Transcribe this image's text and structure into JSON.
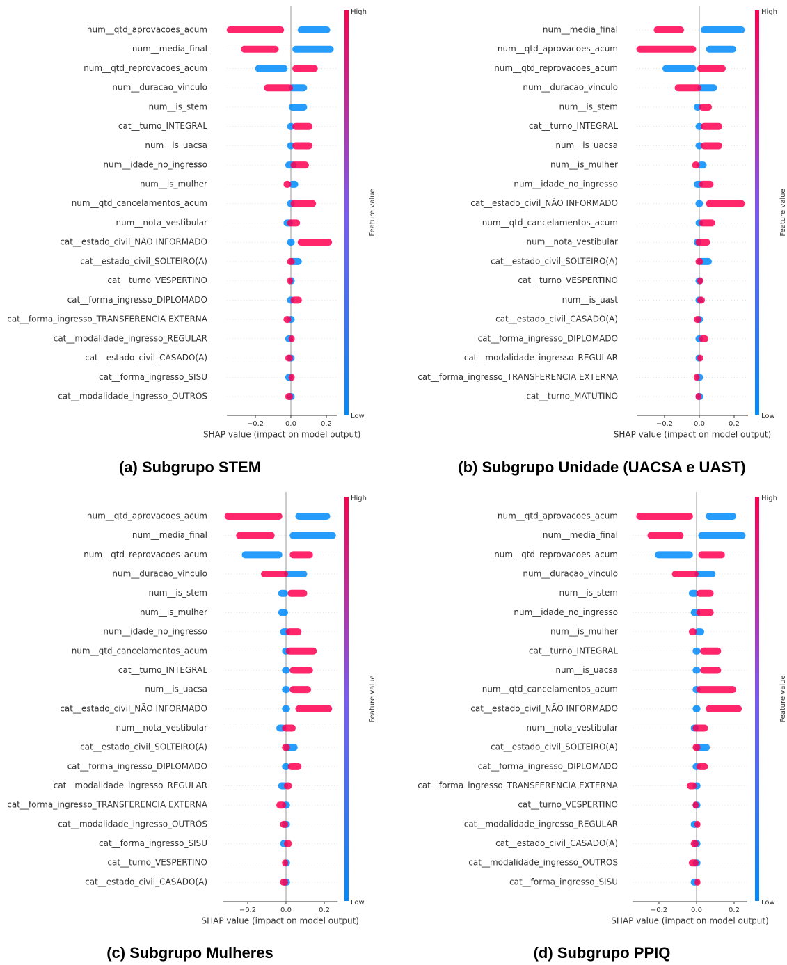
{
  "chart_data": [
    {
      "type": "beeswarm",
      "title": "(a) Subgrupo STEM",
      "xlabel": "SHAP value (impact on model output)",
      "colorbar": {
        "label": "Feature value",
        "high": "High",
        "low": "Low",
        "high_color": "#ff0051",
        "low_color": "#008bfb"
      },
      "xlim": [
        -0.36,
        0.26
      ],
      "xticks": [
        {
          "value": -0.2,
          "label": "−0.2"
        },
        {
          "value": 0,
          "label": "0.0"
        },
        {
          "value": 0.2,
          "label": "0.2"
        }
      ],
      "features": [
        "num__qtd_aprovacoes_acum",
        "num__media_final",
        "num__qtd_reprovacoes_acum",
        "num__duracao_vinculo",
        "num__is_stem",
        "cat__turno_INTEGRAL",
        "num__is_uacsa",
        "num__idade_no_ingresso",
        "num__is_mulher",
        "num__qtd_cancelamentos_acum",
        "num__nota_vestibular",
        "cat__estado_civil_NÃO INFORMADO",
        "cat__estado_civil_SOLTEIRO(A)",
        "cat__turno_VESPERTINO",
        "cat__forma_ingresso_DIPLOMADO",
        "cat__forma_ingresso_TRANSFERENCIA EXTERNA",
        "cat__modalidade_ingresso_REGULAR",
        "cat__estado_civil_CASADO(A)",
        "cat__forma_ingresso_SISU",
        "cat__modalidade_ingresso_OUTROS"
      ],
      "high": [
        [
          -0.35,
          -0.05
        ],
        [
          -0.27,
          -0.08
        ],
        [
          0.02,
          0.14
        ],
        [
          -0.14,
          0.0
        ],
        null,
        [
          0.02,
          0.11
        ],
        [
          0.02,
          0.11
        ],
        [
          0.01,
          0.09
        ],
        [
          -0.03,
          -0.01
        ],
        [
          0.01,
          0.13
        ],
        [
          -0.01,
          0.04
        ],
        [
          0.05,
          0.22
        ],
        [
          -0.01,
          0.01
        ],
        [
          -0.01,
          0.0
        ],
        [
          0.01,
          0.05
        ],
        [
          -0.03,
          -0.01
        ],
        [
          0.0,
          0.01
        ],
        [
          -0.02,
          0.0
        ],
        [
          0.0,
          0.01
        ],
        [
          -0.02,
          0.0
        ]
      ],
      "low": [
        [
          0.05,
          0.21
        ],
        [
          0.02,
          0.23
        ],
        [
          -0.19,
          -0.03
        ],
        [
          0.0,
          0.08
        ],
        [
          0.0,
          0.08
        ],
        [
          -0.01,
          0.01
        ],
        [
          -0.01,
          0.01
        ],
        [
          -0.02,
          0.02
        ],
        [
          0.0,
          0.03
        ],
        [
          -0.01,
          0.01
        ],
        [
          -0.03,
          0.0
        ],
        [
          -0.01,
          0.01
        ],
        [
          0.0,
          0.05
        ],
        [
          0.0,
          0.01
        ],
        [
          -0.01,
          0.01
        ],
        [
          -0.01,
          0.01
        ],
        [
          -0.02,
          0.0
        ],
        [
          -0.01,
          0.01
        ],
        [
          -0.02,
          0.0
        ],
        [
          -0.01,
          0.01
        ]
      ]
    },
    {
      "type": "beeswarm",
      "title": "(b) Subgrupo Unidade (UACSA e UAST)",
      "xlabel": "SHAP value (impact on model output)",
      "colorbar": {
        "label": "Feature value",
        "high": "High",
        "low": "Low",
        "high_color": "#ff0051",
        "low_color": "#008bfb"
      },
      "xlim": [
        -0.36,
        0.28
      ],
      "xticks": [
        {
          "value": -0.2,
          "label": "−0.2"
        },
        {
          "value": 0,
          "label": "0.0"
        },
        {
          "value": 0.2,
          "label": "0.2"
        }
      ],
      "features": [
        "num__media_final",
        "num__qtd_aprovacoes_acum",
        "num__qtd_reprovacoes_acum",
        "num__duracao_vinculo",
        "num__is_stem",
        "cat__turno_INTEGRAL",
        "num__is_uacsa",
        "num__is_mulher",
        "num__idade_no_ingresso",
        "cat__estado_civil_NÃO INFORMADO",
        "num__qtd_cancelamentos_acum",
        "num__nota_vestibular",
        "cat__estado_civil_SOLTEIRO(A)",
        "cat__turno_VESPERTINO",
        "num__is_uast",
        "cat__estado_civil_CASADO(A)",
        "cat__forma_ingresso_DIPLOMADO",
        "cat__modalidade_ingresso_REGULAR",
        "cat__forma_ingresso_TRANSFERENCIA EXTERNA",
        "cat__turno_MATUTINO"
      ],
      "high": [
        [
          -0.25,
          -0.1
        ],
        [
          -0.35,
          -0.03
        ],
        [
          0.0,
          0.14
        ],
        [
          -0.13,
          0.0
        ],
        [
          0.01,
          0.06
        ],
        [
          0.02,
          0.12
        ],
        [
          0.02,
          0.12
        ],
        [
          -0.03,
          -0.01
        ],
        [
          0.01,
          0.07
        ],
        [
          0.05,
          0.25
        ],
        [
          0.01,
          0.08
        ],
        [
          -0.01,
          0.05
        ],
        [
          -0.01,
          0.01
        ],
        [
          0.0,
          0.01
        ],
        [
          0.0,
          0.02
        ],
        [
          -0.02,
          0.0
        ],
        [
          0.01,
          0.04
        ],
        [
          0.0,
          0.01
        ],
        [
          -0.02,
          -0.01
        ],
        [
          -0.01,
          0.0
        ]
      ],
      "low": [
        [
          0.02,
          0.25
        ],
        [
          0.05,
          0.2
        ],
        [
          -0.2,
          -0.03
        ],
        [
          0.0,
          0.09
        ],
        [
          -0.02,
          0.0
        ],
        [
          -0.01,
          0.01
        ],
        [
          -0.01,
          0.01
        ],
        [
          0.0,
          0.03
        ],
        [
          -0.02,
          0.01
        ],
        [
          -0.01,
          0.01
        ],
        [
          -0.01,
          0.01
        ],
        [
          -0.02,
          0.0
        ],
        [
          0.0,
          0.06
        ],
        [
          -0.01,
          0.01
        ],
        [
          -0.01,
          0.01
        ],
        [
          -0.01,
          0.01
        ],
        [
          -0.01,
          0.01
        ],
        [
          -0.01,
          0.0
        ],
        [
          -0.01,
          0.01
        ],
        [
          -0.01,
          0.01
        ]
      ]
    },
    {
      "type": "beeswarm",
      "title": "(c) Subgrupo Mulheres",
      "xlabel": "SHAP value (impact on model output)",
      "colorbar": {
        "label": "Feature value",
        "high": "High",
        "low": "Low",
        "high_color": "#ff0051",
        "low_color": "#008bfb"
      },
      "xlim": [
        -0.33,
        0.27
      ],
      "xticks": [
        {
          "value": -0.2,
          "label": "−0.2"
        },
        {
          "value": 0,
          "label": "0.0"
        },
        {
          "value": 0.2,
          "label": "0.2"
        }
      ],
      "features": [
        "num__qtd_aprovacoes_acum",
        "num__media_final",
        "num__qtd_reprovacoes_acum",
        "num__duracao_vinculo",
        "num__is_stem",
        "num__is_mulher",
        "num__idade_no_ingresso",
        "num__qtd_cancelamentos_acum",
        "cat__turno_INTEGRAL",
        "num__is_uacsa",
        "cat__estado_civil_NÃO INFORMADO",
        "num__nota_vestibular",
        "cat__estado_civil_SOLTEIRO(A)",
        "cat__forma_ingresso_DIPLOMADO",
        "cat__modalidade_ingresso_REGULAR",
        "cat__forma_ingresso_TRANSFERENCIA EXTERNA",
        "cat__modalidade_ingresso_OUTROS",
        "cat__forma_ingresso_SISU",
        "cat__turno_VESPERTINO",
        "cat__estado_civil_CASADO(A)"
      ],
      "high": [
        [
          -0.31,
          -0.03
        ],
        [
          -0.25,
          -0.07
        ],
        [
          0.03,
          0.13
        ],
        [
          -0.12,
          0.0
        ],
        [
          0.02,
          0.1
        ],
        null,
        [
          0.01,
          0.07
        ],
        [
          0.01,
          0.15
        ],
        [
          0.03,
          0.13
        ],
        [
          0.03,
          0.12
        ],
        [
          0.06,
          0.23
        ],
        [
          -0.01,
          0.04
        ],
        [
          -0.01,
          0.01
        ],
        [
          0.02,
          0.07
        ],
        [
          0.0,
          0.02
        ],
        [
          -0.04,
          -0.01
        ],
        [
          -0.02,
          0.0
        ],
        [
          0.0,
          0.02
        ],
        [
          -0.01,
          0.0
        ],
        [
          -0.02,
          0.0
        ]
      ],
      "low": [
        [
          0.06,
          0.22
        ],
        [
          0.03,
          0.25
        ],
        [
          -0.22,
          -0.03
        ],
        [
          0.0,
          0.1
        ],
        [
          -0.03,
          0.0
        ],
        [
          -0.03,
          0.0
        ],
        [
          -0.02,
          0.01
        ],
        [
          -0.01,
          0.01
        ],
        [
          -0.01,
          0.01
        ],
        [
          -0.01,
          0.01
        ],
        [
          -0.01,
          0.01
        ],
        [
          -0.04,
          -0.01
        ],
        [
          0.0,
          0.05
        ],
        [
          -0.01,
          0.01
        ],
        [
          -0.03,
          0.0
        ],
        [
          -0.01,
          0.01
        ],
        [
          -0.01,
          0.01
        ],
        [
          -0.02,
          0.0
        ],
        [
          0.0,
          0.01
        ],
        [
          -0.01,
          0.01
        ]
      ]
    },
    {
      "type": "beeswarm",
      "title": "(d) Subgrupo PPIQ",
      "xlabel": "SHAP value (impact on model output)",
      "colorbar": {
        "label": "Feature value",
        "high": "High",
        "low": "Low",
        "high_color": "#ff0051",
        "low_color": "#008bfb"
      },
      "xlim": [
        -0.34,
        0.27
      ],
      "xticks": [
        {
          "value": -0.2,
          "label": "−0.2"
        },
        {
          "value": 0,
          "label": "0.0"
        },
        {
          "value": 0.2,
          "label": "0.2"
        }
      ],
      "features": [
        "num__qtd_aprovacoes_acum",
        "num__media_final",
        "num__qtd_reprovacoes_acum",
        "num__duracao_vinculo",
        "num__is_stem",
        "num__idade_no_ingresso",
        "num__is_mulher",
        "cat__turno_INTEGRAL",
        "num__is_uacsa",
        "num__qtd_cancelamentos_acum",
        "cat__estado_civil_NÃO INFORMADO",
        "num__nota_vestibular",
        "cat__estado_civil_SOLTEIRO(A)",
        "cat__forma_ingresso_DIPLOMADO",
        "cat__forma_ingresso_TRANSFERENCIA EXTERNA",
        "cat__turno_VESPERTINO",
        "cat__modalidade_ingresso_REGULAR",
        "cat__estado_civil_CASADO(A)",
        "cat__modalidade_ingresso_OUTROS",
        "cat__forma_ingresso_SISU"
      ],
      "high": [
        [
          -0.31,
          -0.03
        ],
        [
          -0.25,
          -0.08
        ],
        [
          0.02,
          0.14
        ],
        [
          -0.12,
          0.0
        ],
        [
          0.01,
          0.08
        ],
        [
          0.01,
          0.08
        ],
        [
          -0.03,
          -0.01
        ],
        [
          0.03,
          0.12
        ],
        [
          0.03,
          0.12
        ],
        [
          0.01,
          0.2
        ],
        [
          0.06,
          0.23
        ],
        [
          -0.01,
          0.05
        ],
        [
          -0.01,
          0.01
        ],
        [
          0.01,
          0.05
        ],
        [
          -0.04,
          -0.01
        ],
        [
          -0.01,
          0.0
        ],
        [
          0.0,
          0.01
        ],
        [
          -0.02,
          0.0
        ],
        [
          -0.03,
          0.0
        ],
        [
          0.0,
          0.01
        ]
      ],
      "low": [
        [
          0.06,
          0.2
        ],
        [
          0.02,
          0.25
        ],
        [
          -0.21,
          -0.03
        ],
        [
          0.0,
          0.09
        ],
        [
          -0.03,
          0.0
        ],
        [
          -0.02,
          0.01
        ],
        [
          0.0,
          0.03
        ],
        [
          -0.01,
          0.01
        ],
        [
          -0.01,
          0.01
        ],
        [
          -0.01,
          0.01
        ],
        [
          -0.01,
          0.01
        ],
        [
          -0.02,
          0.0
        ],
        [
          0.0,
          0.06
        ],
        [
          -0.01,
          0.01
        ],
        [
          -0.01,
          0.01
        ],
        [
          -0.01,
          0.01
        ],
        [
          -0.02,
          0.0
        ],
        [
          -0.01,
          0.01
        ],
        [
          -0.01,
          0.01
        ],
        [
          -0.02,
          0.0
        ]
      ]
    }
  ]
}
